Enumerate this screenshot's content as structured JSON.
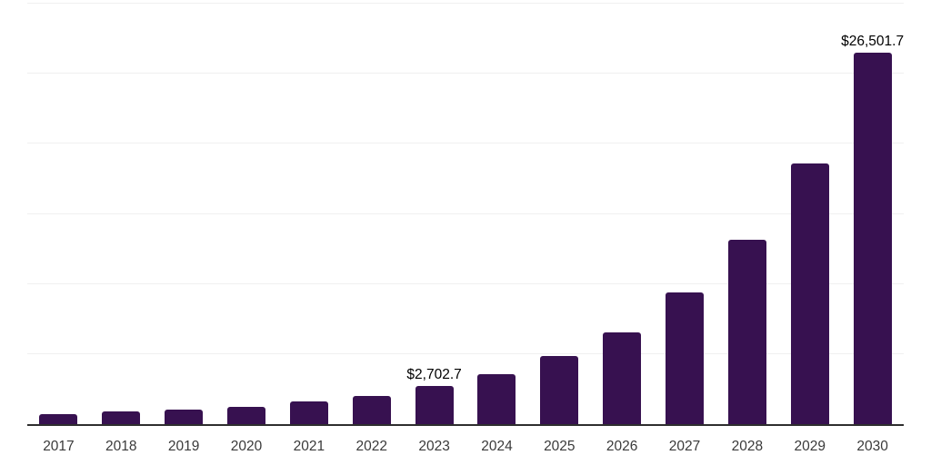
{
  "chart_data": {
    "type": "bar",
    "title": "",
    "xlabel": "",
    "ylabel": "",
    "categories": [
      "2017",
      "2018",
      "2019",
      "2020",
      "2021",
      "2022",
      "2023",
      "2024",
      "2025",
      "2026",
      "2027",
      "2028",
      "2029",
      "2030"
    ],
    "values": [
      740,
      880,
      1030,
      1210,
      1610,
      2040,
      2702.7,
      3550,
      4830,
      6540,
      9370,
      13130,
      18600,
      26501.7
    ],
    "annotations": [
      {
        "category": "2023",
        "text": "$2,702.7"
      },
      {
        "category": "2030",
        "text": "$26,501.7"
      }
    ],
    "ylim": [
      0,
      30000
    ],
    "gridline_step": 5000,
    "grid": true,
    "legend": "none",
    "colors": {
      "bar": "#371150",
      "gridline": "#f0f0f0",
      "axis_line": "#2e2e2e",
      "tick_label": "#3a3a3a",
      "data_label": "#000000",
      "background": "#ffffff"
    }
  }
}
